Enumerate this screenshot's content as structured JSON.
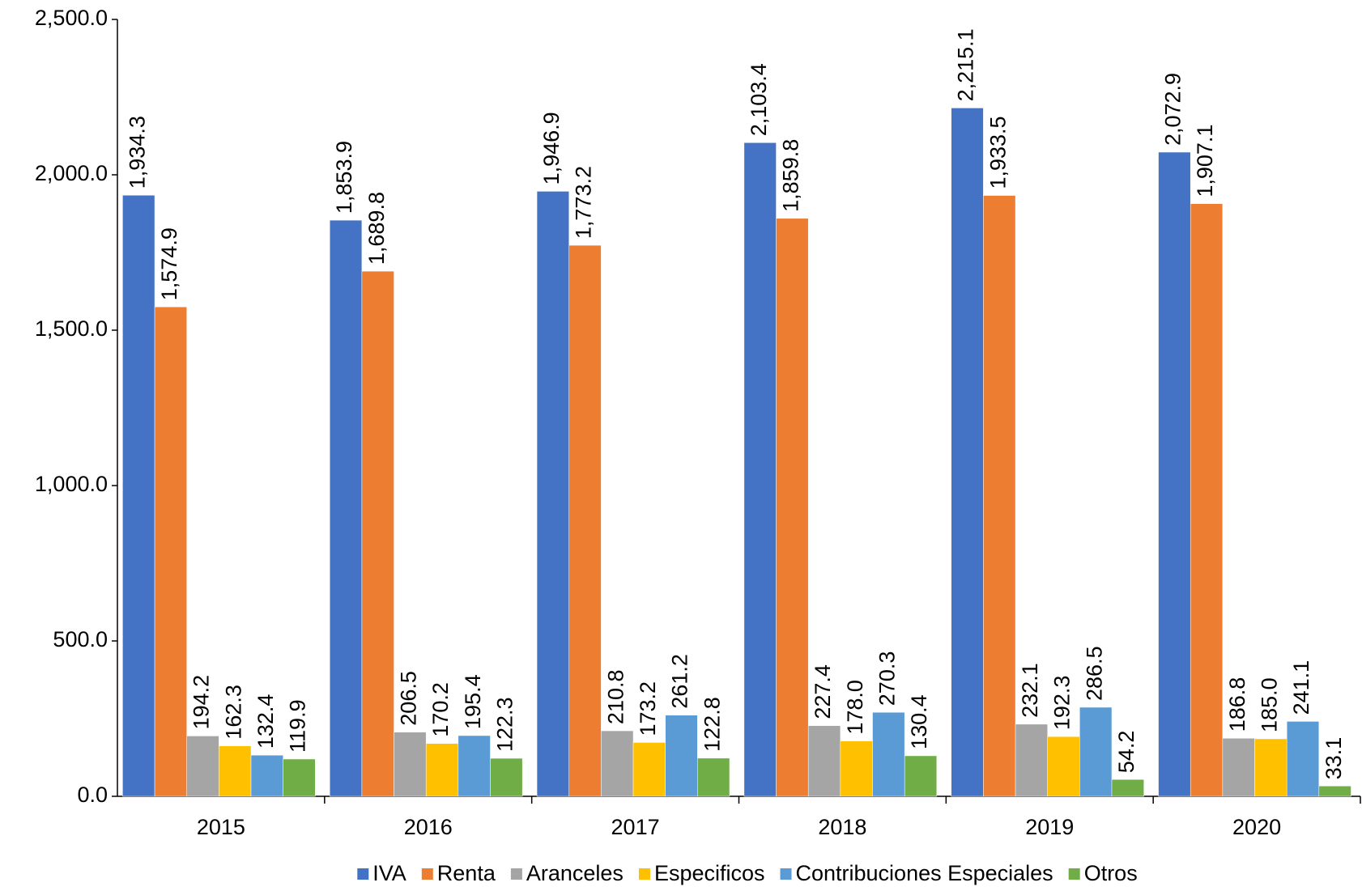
{
  "chart_data": {
    "type": "bar",
    "categories": [
      "2015",
      "2016",
      "2017",
      "2018",
      "2019",
      "2020"
    ],
    "ylim": [
      0,
      2500
    ],
    "yticks": [
      {
        "value": 0,
        "label": "0.0"
      },
      {
        "value": 500,
        "label": "500.0"
      },
      {
        "value": 1000,
        "label": "1,000.0"
      },
      {
        "value": 1500,
        "label": "1,500.0"
      },
      {
        "value": 2000,
        "label": "2,000.0"
      },
      {
        "value": 2500,
        "label": "2,500.0"
      }
    ],
    "legend": "bottom",
    "series": [
      {
        "name": "IVA",
        "color": "#4472c4",
        "values": [
          1934.3,
          1853.9,
          1946.9,
          2103.4,
          2215.1,
          2072.9
        ],
        "value_labels": [
          "1,934.3",
          "1,853.9",
          "1,946.9",
          "2,103.4",
          "2,215.1",
          "2,072.9"
        ]
      },
      {
        "name": "Renta",
        "color": "#ed7d31",
        "values": [
          1574.9,
          1689.8,
          1773.2,
          1859.8,
          1933.5,
          1907.1
        ],
        "value_labels": [
          "1,574.9",
          "1,689.8",
          "1,773.2",
          "1,859.8",
          "1,933.5",
          "1,907.1"
        ]
      },
      {
        "name": "Aranceles",
        "color": "#a5a5a5",
        "values": [
          194.2,
          206.5,
          210.8,
          227.4,
          232.1,
          186.8
        ],
        "value_labels": [
          "194.2",
          "206.5",
          "210.8",
          "227.4",
          "232.1",
          "186.8"
        ]
      },
      {
        "name": "Especificos",
        "color": "#ffc000",
        "values": [
          162.3,
          170.2,
          173.2,
          178.0,
          192.3,
          185.0
        ],
        "value_labels": [
          "162.3",
          "170.2",
          "173.2",
          "178.0",
          "192.3",
          "185.0"
        ]
      },
      {
        "name": "Contribuciones Especiales",
        "color": "#5b9bd5",
        "values": [
          132.4,
          195.4,
          261.2,
          270.3,
          286.5,
          241.1
        ],
        "value_labels": [
          "132.4",
          "195.4",
          "261.2",
          "270.3",
          "286.5",
          "241.1"
        ]
      },
      {
        "name": "Otros",
        "color": "#70ad47",
        "values": [
          119.9,
          122.3,
          122.8,
          130.4,
          54.2,
          33.1
        ],
        "value_labels": [
          "119.9",
          "122.3",
          "122.8",
          "130.4",
          "54.2",
          "33.1"
        ]
      }
    ]
  }
}
